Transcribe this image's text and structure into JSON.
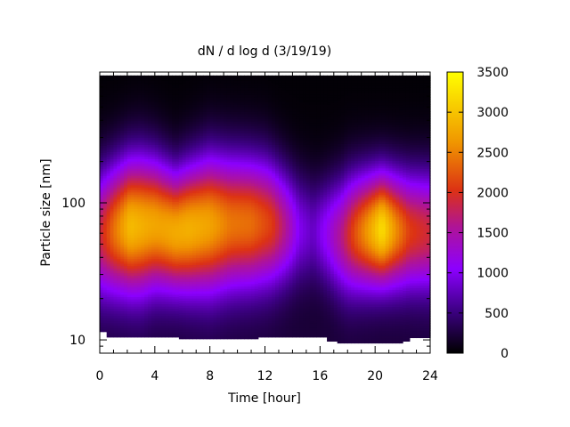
{
  "chart_data": {
    "type": "heatmap",
    "title": "dN / d log d (3/19/19)",
    "xlabel": "Time [hour]",
    "ylabel": "Particle size [nm]",
    "xlim": [
      0,
      24
    ],
    "ylim": [
      8,
      900
    ],
    "y_scale": "log",
    "x_ticks": [
      0,
      4,
      8,
      12,
      16,
      20,
      24
    ],
    "y_ticks": [
      10,
      100
    ],
    "colorbar": {
      "range": [
        0,
        3500
      ],
      "ticks": [
        0,
        500,
        1000,
        1500,
        2000,
        2500,
        3000,
        3500
      ]
    },
    "data_ranges": {
      "time_hours": [
        0,
        24
      ],
      "size_nm_max": 850
    },
    "size_lower_limit_nm": [
      [
        0.0,
        11.5
      ],
      [
        0.5,
        10.5
      ],
      [
        5.8,
        10.2
      ],
      [
        11.5,
        10.5
      ],
      [
        16.5,
        9.8
      ],
      [
        17.2,
        9.5
      ],
      [
        22.0,
        9.8
      ],
      [
        22.5,
        10.4
      ],
      [
        24.0,
        10.4
      ]
    ],
    "size_distribution": {
      "peak_size_nm": [
        [
          0,
          60
        ],
        [
          2,
          68
        ],
        [
          4,
          70
        ],
        [
          5.5,
          62
        ],
        [
          8,
          70
        ],
        [
          10,
          72
        ],
        [
          12,
          72
        ],
        [
          13.5,
          68
        ],
        [
          16,
          62
        ],
        [
          17.5,
          58
        ],
        [
          19,
          62
        ],
        [
          20.5,
          65
        ],
        [
          22,
          63
        ],
        [
          24,
          62
        ]
      ],
      "peak_value": [
        [
          0,
          1750
        ],
        [
          1,
          2300
        ],
        [
          2.2,
          2850
        ],
        [
          3.5,
          2700
        ],
        [
          4.5,
          2650
        ],
        [
          5.5,
          2700
        ],
        [
          6.5,
          2750
        ],
        [
          8,
          2650
        ],
        [
          9.5,
          2350
        ],
        [
          11,
          2300
        ],
        [
          12.5,
          2000
        ],
        [
          13.5,
          1500
        ],
        [
          14.5,
          900
        ],
        [
          15.5,
          700
        ],
        [
          16.5,
          1050
        ],
        [
          17.5,
          1500
        ],
        [
          18.5,
          2100
        ],
        [
          19.5,
          2600
        ],
        [
          20.5,
          3150
        ],
        [
          21.5,
          2500
        ],
        [
          22.5,
          2000
        ],
        [
          23.5,
          1850
        ],
        [
          24,
          1800
        ]
      ],
      "width_log10": [
        [
          0,
          0.32
        ],
        [
          3,
          0.34
        ],
        [
          5.5,
          0.3
        ],
        [
          8,
          0.34
        ],
        [
          12,
          0.32
        ],
        [
          14,
          0.28
        ],
        [
          16,
          0.26
        ],
        [
          18,
          0.3
        ],
        [
          20.5,
          0.28
        ],
        [
          24,
          0.3
        ]
      ]
    }
  }
}
